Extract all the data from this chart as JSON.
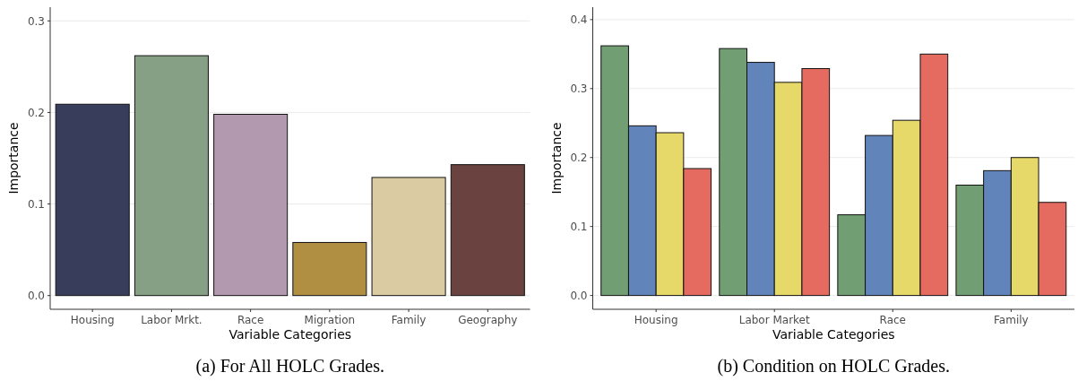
{
  "chart_data": [
    {
      "type": "bar",
      "title": "(a) For All HOLC Grades.",
      "xlabel": "Variable Categories",
      "ylabel": "Importance",
      "categories": [
        "Housing",
        "Labor Mrkt.",
        "Race",
        "Migration",
        "Family",
        "Geography"
      ],
      "values": [
        0.209,
        0.262,
        0.198,
        0.058,
        0.129,
        0.143
      ],
      "colors": [
        "#393d5c",
        "#86a086",
        "#b299af",
        "#b18f42",
        "#dbcba3",
        "#6a4240"
      ],
      "ylim": [
        -0.015,
        0.315
      ],
      "yticks": [
        {
          "value": 0,
          "label": "0.0"
        },
        0.1,
        0.2,
        0.3
      ],
      "grid": "y"
    },
    {
      "type": "bar",
      "title": "(b) Condition on HOLC Grades.",
      "xlabel": "Variable Categories",
      "ylabel": "Importance",
      "categories": [
        "Housing",
        "Labor Market",
        "Race",
        "Family"
      ],
      "series": [
        {
          "color": "#729e73",
          "values": [
            0.362,
            0.358,
            0.117,
            0.16
          ]
        },
        {
          "color": "#6185ba",
          "values": [
            0.246,
            0.338,
            0.232,
            0.181
          ]
        },
        {
          "color": "#e6d96a",
          "values": [
            0.236,
            0.309,
            0.254,
            0.2
          ]
        },
        {
          "color": "#e56b61",
          "values": [
            0.184,
            0.329,
            0.35,
            0.135
          ]
        }
      ],
      "ylim": [
        -0.02,
        0.418
      ],
      "yticks": [
        {
          "value": 0,
          "label": "0.0"
        },
        0.1,
        0.2,
        0.3,
        0.4
      ],
      "grid": "y"
    }
  ]
}
